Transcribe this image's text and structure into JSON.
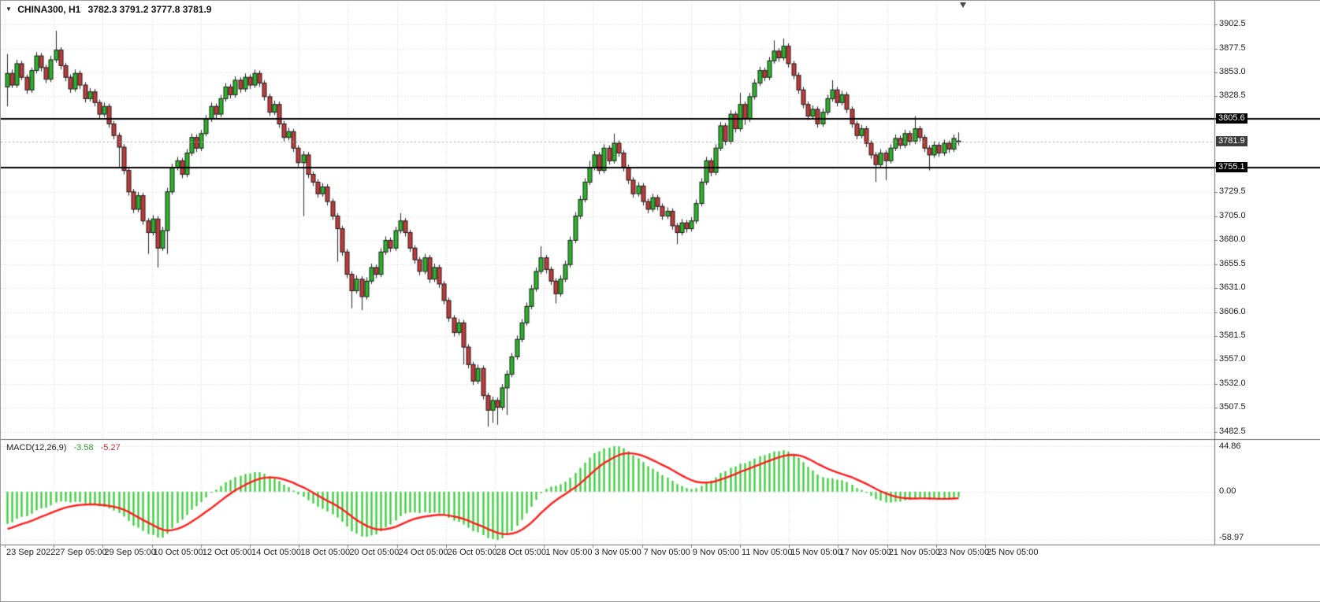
{
  "header": {
    "dropdown_icon": "▼",
    "title": "CHINA300, H1",
    "ohlc_values": "3782.3 3791.2 3777.8 3781.9"
  },
  "chart_data": {
    "type": "candlestick",
    "symbol": "CHINA300",
    "timeframe": "H1",
    "title": "CHINA300, H1 3782.3 3791.2 3777.8 3781.9",
    "price_ticks": [
      3902.5,
      3877.5,
      3853.0,
      3828.5,
      3729.5,
      3705.0,
      3680.0,
      3655.5,
      3631.0,
      3606.0,
      3581.5,
      3557.0,
      3532.0,
      3507.5,
      3482.5
    ],
    "hlines": [
      {
        "value": 3805.6,
        "label": "3805.6"
      },
      {
        "value": 3755.1,
        "label": "3755.1"
      }
    ],
    "bid": {
      "value": 3781.9,
      "label": "3781.9"
    },
    "x_ticks": [
      "23 Sep 2022",
      "27 Sep 05:00",
      "29 Sep 05:00",
      "10 Oct 05:00",
      "12 Oct 05:00",
      "14 Oct 05:00",
      "18 Oct 05:00",
      "20 Oct 05:00",
      "24 Oct 05:00",
      "26 Oct 05:00",
      "28 Oct 05:00",
      "1 Nov 05:00",
      "3 Nov 05:00",
      "7 Nov 05:00",
      "9 Nov 05:00",
      "11 Nov 05:00",
      "15 Nov 05:00",
      "17 Nov 05:00",
      "21 Nov 05:00",
      "23 Nov 05:00",
      "25 Nov 05:00"
    ],
    "indicator": {
      "label": "MACD(12,26,9)",
      "main_value": "-3.58",
      "signal_value": "-5.27",
      "axis_max": "44.86",
      "axis_zero": "0.00",
      "axis_min": "-58.97",
      "fast": 12,
      "slow": 26,
      "signal_period": 9
    },
    "colors": {
      "up": "#2ab52a",
      "down": "#c03a3a",
      "wick": "#222222",
      "body_border": "#1a1a1a",
      "hline": "#000000",
      "hline_box": "#000000",
      "bid_box": "#3d3d3d",
      "bid_line": "#a8a8a8",
      "macd_hist": "#3fcf3f",
      "macd_signal": "#ff1e1e",
      "grid": "#d6d6d6",
      "separator": "#6e6e6e",
      "axis_text": "#1b1b1b"
    },
    "ohlc": [
      [
        3838,
        3872,
        3818,
        3852
      ],
      [
        3852,
        3856,
        3837,
        3840
      ],
      [
        3840,
        3866,
        3837,
        3862
      ],
      [
        3862,
        3865,
        3845,
        3848
      ],
      [
        3848,
        3851,
        3831,
        3835
      ],
      [
        3835,
        3858,
        3832,
        3855
      ],
      [
        3855,
        3874,
        3852,
        3870
      ],
      [
        3870,
        3873,
        3854,
        3858
      ],
      [
        3858,
        3861,
        3842,
        3846
      ],
      [
        3846,
        3870,
        3843,
        3866
      ],
      [
        3866,
        3896,
        3863,
        3876
      ],
      [
        3876,
        3879,
        3856,
        3860
      ],
      [
        3860,
        3863,
        3844,
        3848
      ],
      [
        3848,
        3851,
        3832,
        3836
      ],
      [
        3836,
        3856,
        3833,
        3852
      ],
      [
        3852,
        3855,
        3836,
        3840
      ],
      [
        3840,
        3843,
        3822,
        3826
      ],
      [
        3826,
        3837,
        3823,
        3833
      ],
      [
        3833,
        3836,
        3818,
        3822
      ],
      [
        3822,
        3825,
        3806,
        3810
      ],
      [
        3810,
        3822,
        3807,
        3818
      ],
      [
        3818,
        3821,
        3796,
        3800
      ],
      [
        3800,
        3803,
        3784,
        3788
      ],
      [
        3788,
        3791,
        3755,
        3776
      ],
      [
        3776,
        3779,
        3748,
        3752
      ],
      [
        3752,
        3755,
        3726,
        3730
      ],
      [
        3730,
        3733,
        3708,
        3712
      ],
      [
        3712,
        3730,
        3709,
        3726
      ],
      [
        3726,
        3729,
        3696,
        3700
      ],
      [
        3700,
        3703,
        3666,
        3688
      ],
      [
        3688,
        3706,
        3685,
        3702
      ],
      [
        3702,
        3705,
        3652,
        3672
      ],
      [
        3672,
        3694,
        3669,
        3690
      ],
      [
        3690,
        3734,
        3666,
        3730
      ],
      [
        3730,
        3759,
        3727,
        3755
      ],
      [
        3755,
        3766,
        3752,
        3762
      ],
      [
        3762,
        3765,
        3744,
        3748
      ],
      [
        3748,
        3774,
        3745,
        3770
      ],
      [
        3770,
        3790,
        3767,
        3786
      ],
      [
        3786,
        3789,
        3771,
        3775
      ],
      [
        3775,
        3794,
        3772,
        3790
      ],
      [
        3790,
        3809,
        3787,
        3805
      ],
      [
        3805,
        3822,
        3802,
        3818
      ],
      [
        3818,
        3821,
        3806,
        3810
      ],
      [
        3810,
        3830,
        3807,
        3826
      ],
      [
        3826,
        3842,
        3823,
        3838
      ],
      [
        3838,
        3841,
        3826,
        3830
      ],
      [
        3830,
        3849,
        3827,
        3845
      ],
      [
        3845,
        3848,
        3832,
        3836
      ],
      [
        3836,
        3852,
        3833,
        3848
      ],
      [
        3848,
        3851,
        3836,
        3840
      ],
      [
        3840,
        3856,
        3837,
        3852
      ],
      [
        3852,
        3855,
        3838,
        3842
      ],
      [
        3842,
        3845,
        3824,
        3828
      ],
      [
        3828,
        3831,
        3808,
        3812
      ],
      [
        3812,
        3824,
        3809,
        3820
      ],
      [
        3820,
        3823,
        3796,
        3800
      ],
      [
        3800,
        3803,
        3782,
        3786
      ],
      [
        3786,
        3796,
        3783,
        3792
      ],
      [
        3792,
        3795,
        3771,
        3775
      ],
      [
        3775,
        3778,
        3756,
        3760
      ],
      [
        3760,
        3772,
        3705,
        3768
      ],
      [
        3768,
        3771,
        3744,
        3748
      ],
      [
        3748,
        3751,
        3736,
        3740
      ],
      [
        3740,
        3743,
        3724,
        3728
      ],
      [
        3728,
        3739,
        3725,
        3735
      ],
      [
        3735,
        3738,
        3716,
        3720
      ],
      [
        3720,
        3723,
        3701,
        3705
      ],
      [
        3705,
        3708,
        3658,
        3692
      ],
      [
        3692,
        3695,
        3664,
        3668
      ],
      [
        3668,
        3671,
        3641,
        3645
      ],
      [
        3645,
        3648,
        3610,
        3628
      ],
      [
        3628,
        3644,
        3625,
        3640
      ],
      [
        3640,
        3643,
        3608,
        3622
      ],
      [
        3622,
        3642,
        3619,
        3638
      ],
      [
        3638,
        3656,
        3635,
        3652
      ],
      [
        3652,
        3655,
        3641,
        3645
      ],
      [
        3645,
        3672,
        3642,
        3668
      ],
      [
        3668,
        3684,
        3665,
        3680
      ],
      [
        3680,
        3683,
        3668,
        3672
      ],
      [
        3672,
        3694,
        3669,
        3690
      ],
      [
        3690,
        3708,
        3687,
        3700
      ],
      [
        3700,
        3703,
        3684,
        3688
      ],
      [
        3688,
        3691,
        3668,
        3672
      ],
      [
        3672,
        3675,
        3656,
        3660
      ],
      [
        3660,
        3663,
        3644,
        3648
      ],
      [
        3648,
        3666,
        3645,
        3662
      ],
      [
        3662,
        3665,
        3636,
        3640
      ],
      [
        3640,
        3656,
        3637,
        3652
      ],
      [
        3652,
        3655,
        3631,
        3635
      ],
      [
        3635,
        3638,
        3614,
        3618
      ],
      [
        3618,
        3621,
        3596,
        3600
      ],
      [
        3600,
        3603,
        3581,
        3585
      ],
      [
        3585,
        3599,
        3582,
        3595
      ],
      [
        3595,
        3598,
        3552,
        3570
      ],
      [
        3570,
        3573,
        3548,
        3552
      ],
      [
        3552,
        3555,
        3531,
        3535
      ],
      [
        3535,
        3552,
        3532,
        3548
      ],
      [
        3548,
        3551,
        3516,
        3520
      ],
      [
        3520,
        3523,
        3488,
        3505
      ],
      [
        3505,
        3519,
        3492,
        3515
      ],
      [
        3515,
        3518,
        3490,
        3508
      ],
      [
        3508,
        3532,
        3505,
        3528
      ],
      [
        3528,
        3546,
        3500,
        3542
      ],
      [
        3542,
        3564,
        3539,
        3560
      ],
      [
        3560,
        3582,
        3557,
        3578
      ],
      [
        3578,
        3599,
        3575,
        3595
      ],
      [
        3595,
        3616,
        3592,
        3612
      ],
      [
        3612,
        3634,
        3609,
        3630
      ],
      [
        3630,
        3652,
        3627,
        3648
      ],
      [
        3648,
        3674,
        3645,
        3662
      ],
      [
        3662,
        3665,
        3646,
        3650
      ],
      [
        3650,
        3653,
        3634,
        3638
      ],
      [
        3638,
        3641,
        3615,
        3625
      ],
      [
        3625,
        3644,
        3622,
        3640
      ],
      [
        3640,
        3659,
        3637,
        3655
      ],
      [
        3655,
        3684,
        3652,
        3680
      ],
      [
        3680,
        3709,
        3677,
        3705
      ],
      [
        3705,
        3726,
        3702,
        3722
      ],
      [
        3722,
        3744,
        3719,
        3740
      ],
      [
        3740,
        3762,
        3737,
        3755
      ],
      [
        3755,
        3772,
        3752,
        3768
      ],
      [
        3768,
        3771,
        3748,
        3752
      ],
      [
        3752,
        3779,
        3749,
        3775
      ],
      [
        3775,
        3778,
        3758,
        3762
      ],
      [
        3762,
        3790,
        3759,
        3780
      ],
      [
        3780,
        3783,
        3766,
        3770
      ],
      [
        3770,
        3773,
        3751,
        3755
      ],
      [
        3755,
        3758,
        3738,
        3742
      ],
      [
        3742,
        3745,
        3724,
        3728
      ],
      [
        3728,
        3740,
        3725,
        3736
      ],
      [
        3736,
        3739,
        3716,
        3720
      ],
      [
        3720,
        3723,
        3708,
        3712
      ],
      [
        3712,
        3728,
        3709,
        3724
      ],
      [
        3724,
        3727,
        3711,
        3715
      ],
      [
        3715,
        3718,
        3701,
        3705
      ],
      [
        3705,
        3714,
        3702,
        3710
      ],
      [
        3710,
        3713,
        3691,
        3695
      ],
      [
        3695,
        3698,
        3676,
        3688
      ],
      [
        3688,
        3702,
        3685,
        3698
      ],
      [
        3698,
        3701,
        3688,
        3692
      ],
      [
        3692,
        3704,
        3689,
        3700
      ],
      [
        3700,
        3722,
        3697,
        3718
      ],
      [
        3718,
        3744,
        3715,
        3740
      ],
      [
        3740,
        3766,
        3737,
        3762
      ],
      [
        3762,
        3765,
        3746,
        3750
      ],
      [
        3750,
        3779,
        3747,
        3775
      ],
      [
        3775,
        3802,
        3772,
        3798
      ],
      [
        3798,
        3801,
        3778,
        3782
      ],
      [
        3782,
        3814,
        3779,
        3810
      ],
      [
        3810,
        3813,
        3791,
        3795
      ],
      [
        3795,
        3832,
        3792,
        3820
      ],
      [
        3820,
        3823,
        3799,
        3805
      ],
      [
        3805,
        3832,
        3802,
        3828
      ],
      [
        3828,
        3846,
        3825,
        3842
      ],
      [
        3842,
        3859,
        3839,
        3855
      ],
      [
        3855,
        3858,
        3844,
        3848
      ],
      [
        3848,
        3869,
        3845,
        3865
      ],
      [
        3865,
        3886,
        3862,
        3875
      ],
      [
        3875,
        3878,
        3864,
        3868
      ],
      [
        3868,
        3888,
        3865,
        3880
      ],
      [
        3880,
        3883,
        3858,
        3862
      ],
      [
        3862,
        3865,
        3846,
        3850
      ],
      [
        3850,
        3853,
        3831,
        3835
      ],
      [
        3835,
        3838,
        3816,
        3820
      ],
      [
        3820,
        3823,
        3804,
        3808
      ],
      [
        3808,
        3819,
        3805,
        3815
      ],
      [
        3815,
        3818,
        3796,
        3800
      ],
      [
        3800,
        3816,
        3797,
        3812
      ],
      [
        3812,
        3830,
        3809,
        3826
      ],
      [
        3826,
        3845,
        3823,
        3835
      ],
      [
        3835,
        3838,
        3818,
        3822
      ],
      [
        3822,
        3834,
        3819,
        3830
      ],
      [
        3830,
        3833,
        3811,
        3815
      ],
      [
        3815,
        3818,
        3796,
        3800
      ],
      [
        3800,
        3803,
        3784,
        3788
      ],
      [
        3788,
        3799,
        3785,
        3795
      ],
      [
        3795,
        3798,
        3776,
        3780
      ],
      [
        3780,
        3783,
        3764,
        3768
      ],
      [
        3768,
        3771,
        3740,
        3758
      ],
      [
        3758,
        3774,
        3755,
        3770
      ],
      [
        3770,
        3773,
        3742,
        3762
      ],
      [
        3762,
        3779,
        3759,
        3775
      ],
      [
        3775,
        3789,
        3772,
        3785
      ],
      [
        3785,
        3788,
        3774,
        3778
      ],
      [
        3778,
        3794,
        3775,
        3790
      ],
      [
        3790,
        3793,
        3778,
        3782
      ],
      [
        3782,
        3808,
        3779,
        3795
      ],
      [
        3795,
        3798,
        3782,
        3786
      ],
      [
        3786,
        3789,
        3771,
        3775
      ],
      [
        3775,
        3778,
        3752,
        3768
      ],
      [
        3768,
        3782,
        3765,
        3778
      ],
      [
        3778,
        3781,
        3766,
        3770
      ],
      [
        3770,
        3784,
        3767,
        3780
      ],
      [
        3780,
        3783,
        3770,
        3774
      ],
      [
        3774,
        3789,
        3771,
        3785
      ],
      [
        3782.3,
        3791.2,
        3777.8,
        3781.9
      ]
    ]
  }
}
